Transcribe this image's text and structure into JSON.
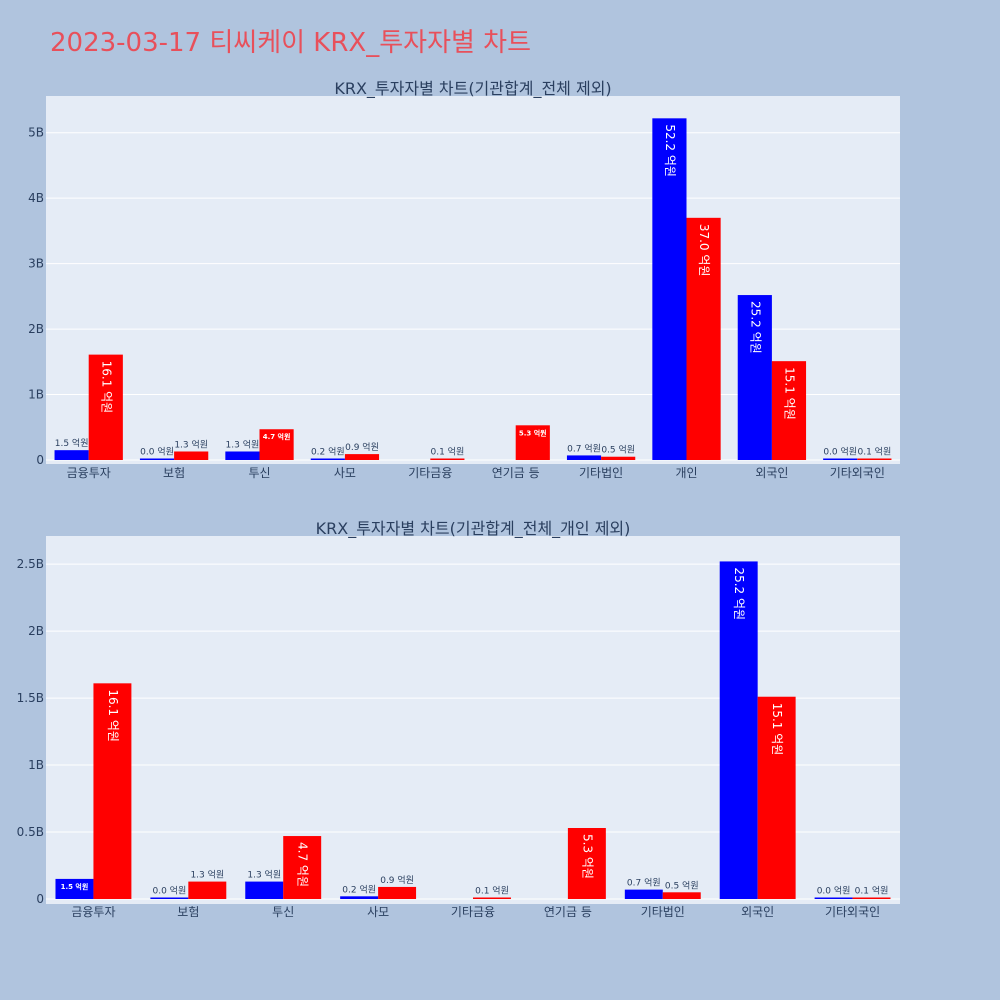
{
  "page": {
    "title": "2023-03-17 티씨케이 KRX_투자자별 차트"
  },
  "colors": {
    "background": "#b0c4de",
    "plot_bg": "#e5ecf6",
    "series_a": "#0000ff",
    "series_b": "#ff0000",
    "title": "#e8505b",
    "text": "#2a3f5f"
  },
  "chart_data": [
    {
      "type": "bar",
      "title": "KRX_투자자별 차트(기관합계_전체 제외)",
      "categories": [
        "금융투자",
        "보험",
        "투신",
        "사모",
        "기타금융",
        "연기금 등",
        "기타법인",
        "개인",
        "외국인",
        "기타외국인"
      ],
      "series": [
        {
          "color": "#0000ff",
          "values": [
            150000000,
            2000000,
            130000000,
            20000000,
            0,
            0,
            70000000,
            5220000000,
            2520000000,
            2000000
          ],
          "labels": [
            "1.5 억원",
            "0.0 억원",
            "1.3 억원",
            "0.2 억원",
            "",
            "",
            "0.7 억원",
            "52.2 억원",
            "25.2 억원",
            "0.0 억원"
          ]
        },
        {
          "color": "#ff0000",
          "values": [
            1610000000,
            130000000,
            470000000,
            90000000,
            10000000,
            530000000,
            50000000,
            3700000000,
            1510000000,
            10000000
          ],
          "labels": [
            "16.1 억원",
            "1.3 억원",
            "4.7 억원",
            "0.9 억원",
            "0.1 억원",
            "5.3 억원",
            "0.5 억원",
            "37.0 억원",
            "15.1 억원",
            "0.1 억원"
          ]
        }
      ],
      "ylim": [
        0,
        5500000000
      ],
      "yticks": [
        0,
        1000000000,
        2000000000,
        3000000000,
        4000000000,
        5000000000
      ],
      "yticklabels": [
        "0",
        "1B",
        "2B",
        "3B",
        "4B",
        "5B"
      ],
      "grid": true
    },
    {
      "type": "bar",
      "title": "KRX_투자자별 차트(기관합계_전체_개인 제외)",
      "categories": [
        "금융투자",
        "보험",
        "투신",
        "사모",
        "기타금융",
        "연기금 등",
        "기타법인",
        "외국인",
        "기타외국인"
      ],
      "series": [
        {
          "color": "#0000ff",
          "values": [
            150000000,
            2000000,
            130000000,
            20000000,
            0,
            0,
            70000000,
            2520000000,
            2000000
          ],
          "labels": [
            "1.5 억원",
            "0.0 억원",
            "1.3 억원",
            "0.2 억원",
            "",
            "",
            "0.7 억원",
            "25.2 억원",
            "0.0 억원"
          ]
        },
        {
          "color": "#ff0000",
          "values": [
            1610000000,
            130000000,
            470000000,
            90000000,
            10000000,
            530000000,
            50000000,
            1510000000,
            10000000
          ],
          "labels": [
            "16.1 억원",
            "1.3 억원",
            "4.7 억원",
            "0.9 억원",
            "0.1 억원",
            "5.3 억원",
            "0.5 억원",
            "15.1 억원",
            "0.1 억원"
          ]
        }
      ],
      "ylim": [
        0,
        2680000000
      ],
      "yticks": [
        0,
        500000000,
        1000000000,
        1500000000,
        2000000000,
        2500000000
      ],
      "yticklabels": [
        "0",
        "0.5B",
        "1B",
        "1.5B",
        "2B",
        "2.5B"
      ],
      "grid": true
    }
  ]
}
